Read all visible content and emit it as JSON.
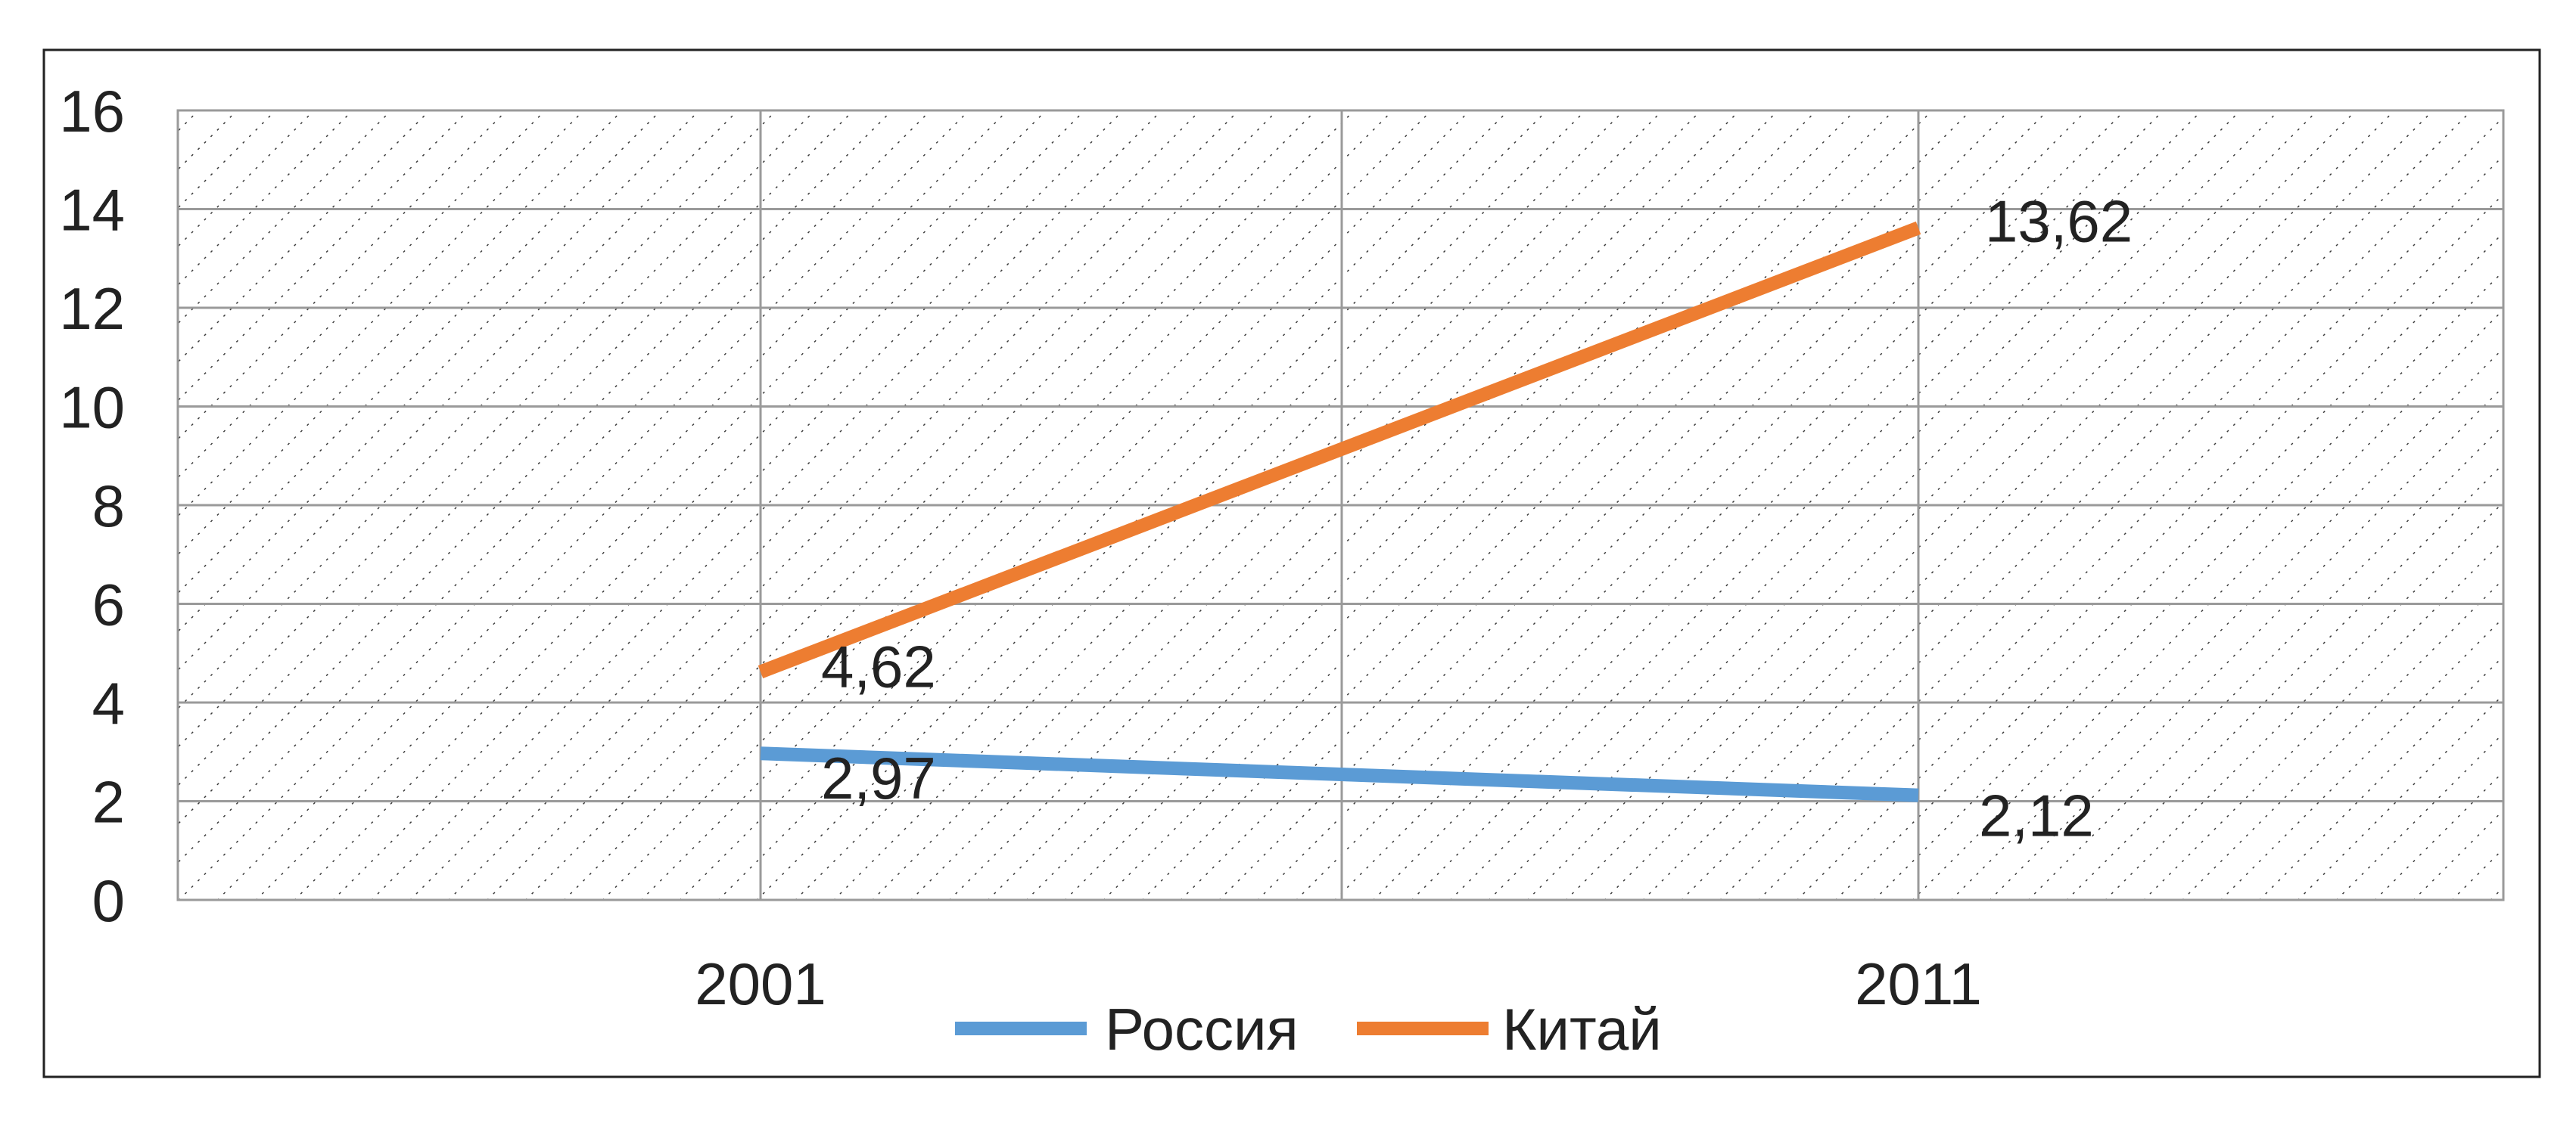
{
  "chart_data": {
    "type": "line",
    "categories": [
      "2001",
      "2011"
    ],
    "series": [
      {
        "name": "Россия",
        "values": [
          2.97,
          2.12
        ],
        "labels": [
          "2,97",
          "2,12"
        ],
        "color": "#5b9bd5"
      },
      {
        "name": "Китай",
        "values": [
          4.62,
          13.62
        ],
        "labels": [
          "4,62",
          "13,62"
        ],
        "color": "#ed7d31"
      }
    ],
    "ylim": [
      0,
      16
    ],
    "yticks": [
      0,
      2,
      4,
      6,
      8,
      10,
      12,
      14,
      16
    ],
    "title": "",
    "xlabel": "",
    "ylabel": "",
    "grid": true,
    "legend_position": "bottom"
  }
}
